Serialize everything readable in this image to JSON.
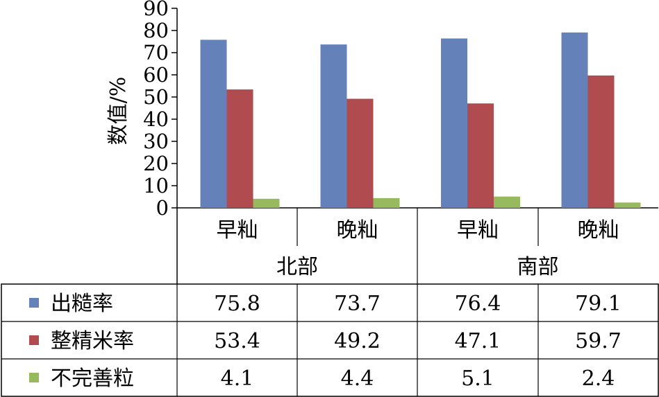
{
  "chart_data": {
    "type": "bar",
    "title": "",
    "xlabel": "",
    "ylabel": "数值/%",
    "ylim": [
      0,
      90
    ],
    "yticks": [
      0,
      10,
      20,
      30,
      40,
      50,
      60,
      70,
      80,
      90
    ],
    "grid": false,
    "legend_placement": "data-table-left",
    "categories": [
      "早籼",
      "晚籼",
      "早籼",
      "晚籼"
    ],
    "groups": [
      {
        "label": "北部",
        "span": [
          0,
          1
        ]
      },
      {
        "label": "南部",
        "span": [
          2,
          3
        ]
      }
    ],
    "series": [
      {
        "name": "出糙率",
        "color": "#6581BA",
        "values": [
          75.8,
          73.7,
          76.4,
          79.1
        ],
        "labels": [
          "75.8",
          "73.7",
          "76.4",
          "79.1"
        ]
      },
      {
        "name": "整精米率",
        "color": "#B04B50",
        "values": [
          53.4,
          49.2,
          47.1,
          59.7
        ],
        "labels": [
          "53.4",
          "49.2",
          "47.1",
          "59.7"
        ]
      },
      {
        "name": "不完善粒",
        "color": "#98BA5E",
        "values": [
          4.1,
          4.4,
          5.1,
          2.4
        ],
        "labels": [
          "4.1",
          "4.4",
          "5.1",
          "2.4"
        ]
      }
    ]
  }
}
